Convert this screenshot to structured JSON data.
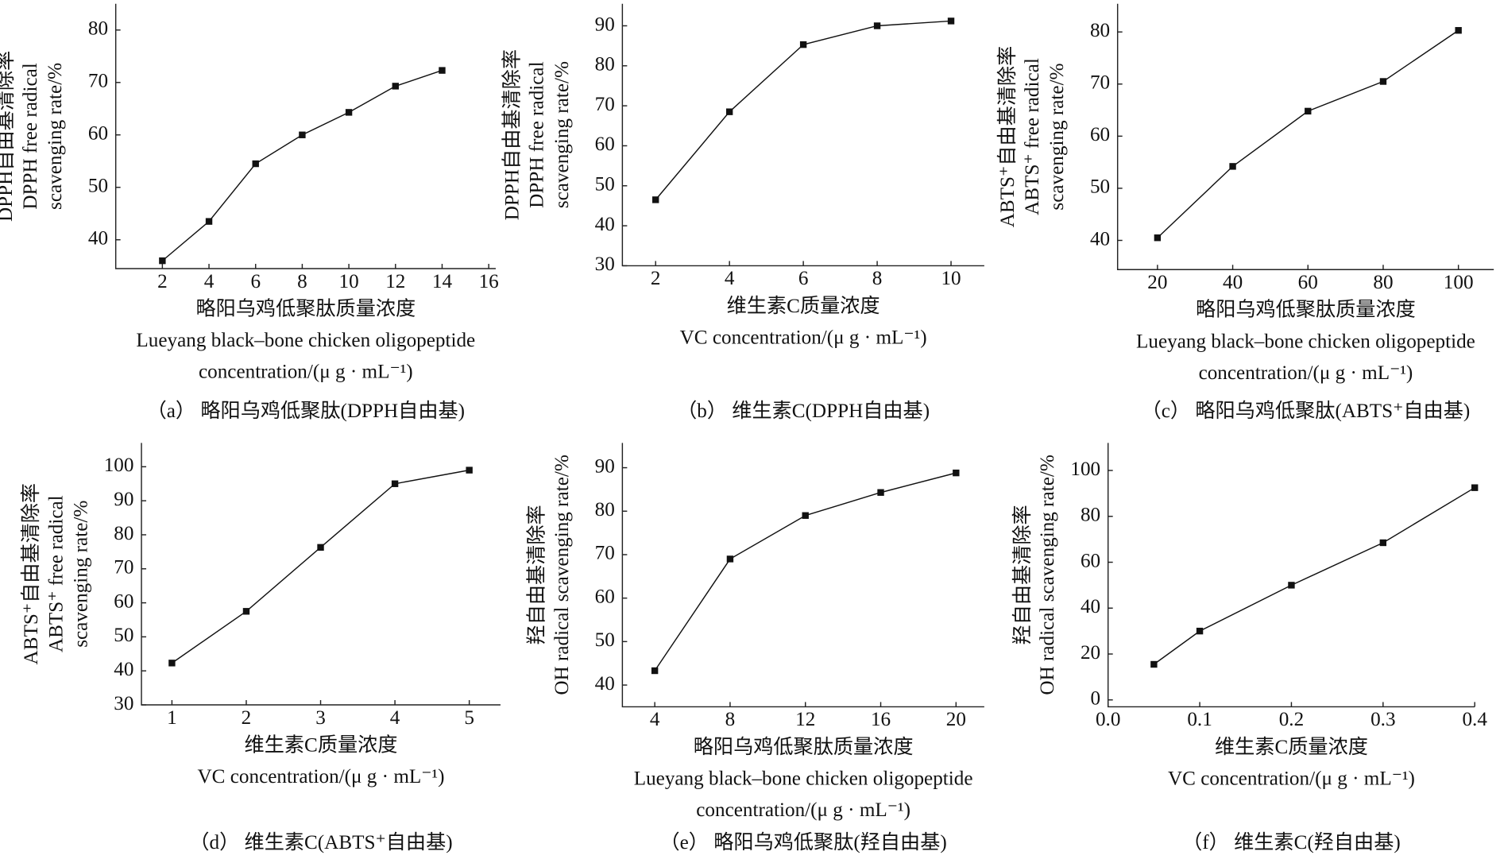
{
  "chart_data": [
    {
      "type": "line",
      "caption": "（a） 略阳乌鸡低聚肽(DPPH自由基)",
      "y_label": [
        "DPPH自由基清除率",
        "DPPH free radical",
        "scavenging rate/%"
      ],
      "x_label": [
        "略阳乌鸡低聚肽质量浓度",
        "Lueyang black–bone chicken oligopeptide",
        "concentration/(μ g · mL⁻¹)"
      ],
      "x": [
        2,
        4,
        6,
        8,
        10,
        12,
        14
      ],
      "values": [
        36,
        43.5,
        54.5,
        60,
        64.3,
        69.3,
        72.3
      ],
      "color": "#111111",
      "xlim": [
        0,
        16.3
      ],
      "xticks": [
        2,
        4,
        6,
        8,
        10,
        12,
        14,
        16
      ],
      "ylim": [
        34.5,
        85
      ],
      "yticks": [
        40,
        50,
        60,
        70,
        80
      ]
    },
    {
      "type": "line",
      "caption": "（b） 维生素C(DPPH自由基)",
      "y_label": [
        "DPPH自由基清除率",
        "DPPH free radical",
        "scavenging rate/%"
      ],
      "x_label": [
        "维生素C质量浓度",
        "VC concentration/(μ g · mL⁻¹)"
      ],
      "x": [
        2,
        4,
        6,
        8,
        10
      ],
      "values": [
        46.5,
        68.5,
        85.3,
        90,
        91.2
      ],
      "color": "#111111",
      "xlim": [
        1.1,
        10.9
      ],
      "xticks": [
        2,
        4,
        6,
        8,
        10
      ],
      "ylim": [
        30,
        95.5
      ],
      "yticks": [
        30,
        40,
        50,
        60,
        70,
        80,
        90
      ]
    },
    {
      "type": "line",
      "caption": "（c） 略阳乌鸡低聚肽(ABTS⁺自由基)",
      "y_label": [
        "ABTS⁺自由基清除率",
        "ABTS⁺ free radical",
        "scavenging rate/%"
      ],
      "x_label": [
        "略阳乌鸡低聚肽质量浓度",
        "Lueyang black–bone chicken oligopeptide",
        "concentration/(μ g · mL⁻¹)"
      ],
      "x": [
        20,
        40,
        60,
        80,
        100
      ],
      "values": [
        40.5,
        54.2,
        64.8,
        70.5,
        80.3
      ],
      "color": "#111111",
      "xlim": [
        9.4,
        109.4
      ],
      "xticks": [
        20,
        40,
        60,
        80,
        100
      ],
      "ylim": [
        34.4,
        85.4
      ],
      "yticks": [
        40,
        50,
        60,
        70,
        80
      ]
    },
    {
      "type": "line",
      "caption": "（d） 维生素C(ABTS⁺自由基)",
      "y_label": [
        "ABTS⁺自由基清除率",
        "ABTS⁺ free radical",
        "scavenging rate/%"
      ],
      "x_label": [
        "维生素C质量浓度",
        "VC concentration/(μ g · mL⁻¹)"
      ],
      "x": [
        1,
        2,
        3,
        4,
        5
      ],
      "values": [
        42.3,
        57.5,
        76.3,
        95,
        99
      ],
      "color": "#111111",
      "xlim": [
        0.59,
        5.42
      ],
      "xticks": [
        1,
        2,
        3,
        4,
        5
      ],
      "ylim": [
        30,
        107
      ],
      "yticks": [
        30,
        40,
        50,
        60,
        70,
        80,
        90,
        100
      ]
    },
    {
      "type": "line",
      "caption": "（e） 略阳乌鸡低聚肽(羟自由基)",
      "y_label": [
        "羟自由基清除率",
        "OH radical scavenging rate/%"
      ],
      "x_label": [
        "略阳乌鸡低聚肽质量浓度",
        "Lueyang black–bone chicken oligopeptide",
        "concentration/(μ g · mL⁻¹)"
      ],
      "x": [
        4,
        8,
        12,
        16,
        20
      ],
      "values": [
        43.3,
        69,
        79,
        84.3,
        88.8
      ],
      "color": "#111111",
      "xlim": [
        2.28,
        21.5
      ],
      "xticks": [
        4,
        8,
        12,
        16,
        20
      ],
      "ylim": [
        35,
        95.7
      ],
      "yticks": [
        40,
        50,
        60,
        70,
        80,
        90
      ]
    },
    {
      "type": "line",
      "caption": "（f） 维生素C(羟自由基)",
      "y_label": [
        "羟自由基清除率",
        "OH radical scavenging rate/%"
      ],
      "x_label": [
        "维生素C质量浓度",
        "VC concentration/(μ g · mL⁻¹)"
      ],
      "x": [
        0.05,
        0.1,
        0.2,
        0.3,
        0.4
      ],
      "values": [
        15.5,
        30,
        50,
        68.5,
        92.5
      ],
      "color": "#111111",
      "xlim": [
        0,
        0.4
      ],
      "xticks": [
        {
          "value": 0,
          "label": "0.0"
        },
        0.1,
        0.2,
        0.3,
        0.4
      ],
      "ylim": [
        -3,
        112
      ],
      "yticks": [
        0,
        20,
        40,
        60,
        80,
        100
      ]
    }
  ]
}
